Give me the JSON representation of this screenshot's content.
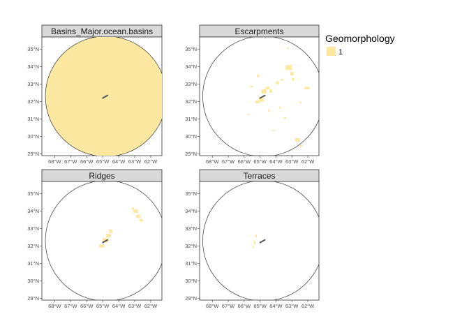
{
  "chart_data": {
    "type": "map",
    "layout": "facet-grid-2x2",
    "fill_color": "#fce8a0",
    "outline_color": "#333333",
    "island_color": "#555555",
    "x_ticks": [
      "68°W",
      "67°W",
      "66°W",
      "65°W",
      "64°W",
      "63°W",
      "62°W"
    ],
    "x_tick_values": [
      -68,
      -67,
      -66,
      -65,
      -64,
      -63,
      -62
    ],
    "y_ticks": [
      "29°N",
      "30°N",
      "31°N",
      "32°N",
      "33°N",
      "34°N",
      "35°N"
    ],
    "y_tick_values": [
      29,
      30,
      31,
      32,
      33,
      34,
      35
    ],
    "xlim": [
      -68.8,
      -61.3
    ],
    "ylim": [
      28.9,
      35.7
    ],
    "circle": {
      "center": [
        -64.8,
        32.3
      ],
      "radius_deg_lat": 3.45
    },
    "island": [
      [
        -65.0,
        32.2
      ],
      [
        -64.7,
        32.35
      ]
    ],
    "legend": {
      "title": "Geomorphology",
      "entries": [
        {
          "label": "1",
          "color": "#fce8a0"
        }
      ]
    },
    "facets": [
      {
        "title": "Basins_Major.ocean.basins",
        "full_circle": true,
        "patches": []
      },
      {
        "title": "Escarpments",
        "full_circle": false,
        "patches": [
          [
            -65.1,
            32.0,
            0.35,
            0.2
          ],
          [
            -64.9,
            32.45,
            0.3,
            0.25
          ],
          [
            -64.65,
            32.7,
            0.25,
            0.15
          ],
          [
            -65.3,
            31.9,
            0.3,
            0.15
          ],
          [
            -64.4,
            32.5,
            0.15,
            0.2
          ],
          [
            -65.6,
            32.8,
            0.15,
            0.1
          ],
          [
            -65.2,
            33.4,
            0.15,
            0.15
          ],
          [
            -64.0,
            33.0,
            0.2,
            0.15
          ],
          [
            -63.7,
            33.2,
            0.15,
            0.1
          ],
          [
            -63.4,
            33.8,
            0.4,
            0.3
          ],
          [
            -63.1,
            33.5,
            0.2,
            0.2
          ],
          [
            -63.0,
            33.2,
            0.15,
            0.15
          ],
          [
            -62.2,
            32.7,
            0.3,
            0.15
          ],
          [
            -63.3,
            35.0,
            0.1,
            0.1
          ],
          [
            -64.5,
            31.4,
            0.1,
            0.15
          ],
          [
            -63.5,
            31.0,
            0.15,
            0.1
          ],
          [
            -64.2,
            30.3,
            0.1,
            0.1
          ],
          [
            -62.8,
            29.7,
            0.3,
            0.2
          ],
          [
            -62.5,
            29.4,
            0.15,
            0.1
          ],
          [
            -63.8,
            31.6,
            0.1,
            0.1
          ],
          [
            -65.8,
            31.2,
            0.1,
            0.1
          ],
          [
            -62.5,
            31.9,
            0.1,
            0.1
          ]
        ]
      },
      {
        "title": "Ridges",
        "full_circle": false,
        "patches": [
          [
            -64.8,
            32.5,
            0.3,
            0.2
          ],
          [
            -65.0,
            32.2,
            0.35,
            0.25
          ],
          [
            -65.2,
            31.9,
            0.3,
            0.2
          ],
          [
            -64.6,
            32.75,
            0.2,
            0.2
          ],
          [
            -63.1,
            33.9,
            0.3,
            0.2
          ],
          [
            -62.9,
            33.6,
            0.25,
            0.2
          ],
          [
            -62.7,
            33.4,
            0.2,
            0.15
          ],
          [
            -63.2,
            34.1,
            0.15,
            0.1
          ]
        ]
      },
      {
        "title": "Terraces",
        "full_circle": false,
        "patches": [
          [
            -65.3,
            32.5,
            0.1,
            0.15
          ],
          [
            -65.4,
            32.1,
            0.1,
            0.2
          ],
          [
            -65.5,
            31.9,
            0.1,
            0.1
          ]
        ]
      }
    ]
  }
}
